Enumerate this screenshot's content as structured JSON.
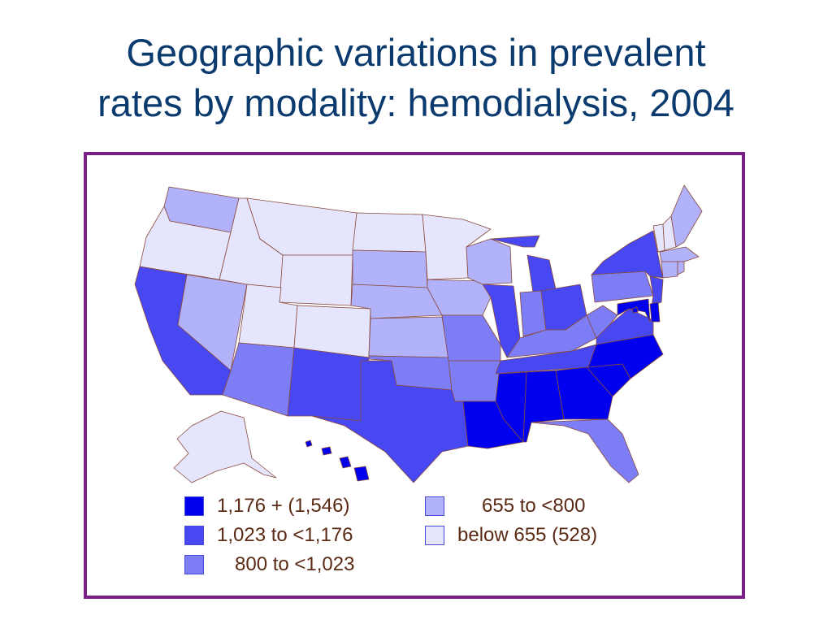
{
  "slide": {
    "title_lines": [
      "Geographic variations in prevalent",
      "rates by modality: hemodialysis, 2004"
    ]
  },
  "colors": {
    "c1": "#0000ee",
    "c2": "#4848f2",
    "c3": "#7d7df6",
    "c4": "#b2b2fb",
    "c5": "#e5e5fd",
    "border": "#8a4a3a",
    "frame": "#7a1f86",
    "title": "#0b3b6e",
    "legend_text": "#5a2a14"
  },
  "legend": {
    "items": [
      {
        "label": "1,176 + (1,546)",
        "color": "#0000ee"
      },
      {
        "label": "1,023 to <1,176",
        "color": "#4848f2"
      },
      {
        "label": "800 to <1,023",
        "color": "#7d7df6"
      },
      {
        "label": "655 to <800",
        "color": "#b2b2fb"
      },
      {
        "label": "below 655 (528)",
        "color": "#e5e5fd"
      }
    ]
  },
  "states": [
    {
      "name": "WA",
      "cls": "c4"
    },
    {
      "name": "OR",
      "cls": "c5"
    },
    {
      "name": "CA",
      "cls": "c2"
    },
    {
      "name": "NV",
      "cls": "c4"
    },
    {
      "name": "ID",
      "cls": "c5"
    },
    {
      "name": "MT",
      "cls": "c5"
    },
    {
      "name": "WY",
      "cls": "c5"
    },
    {
      "name": "UT",
      "cls": "c5"
    },
    {
      "name": "AZ",
      "cls": "c3"
    },
    {
      "name": "CO",
      "cls": "c5"
    },
    {
      "name": "NM",
      "cls": "c2"
    },
    {
      "name": "ND",
      "cls": "c5"
    },
    {
      "name": "SD",
      "cls": "c4"
    },
    {
      "name": "NE",
      "cls": "c4"
    },
    {
      "name": "KS",
      "cls": "c4"
    },
    {
      "name": "OK",
      "cls": "c3"
    },
    {
      "name": "TX",
      "cls": "c2"
    },
    {
      "name": "MN",
      "cls": "c5"
    },
    {
      "name": "IA",
      "cls": "c4"
    },
    {
      "name": "MO",
      "cls": "c3"
    },
    {
      "name": "AR",
      "cls": "c3"
    },
    {
      "name": "LA",
      "cls": "c1"
    },
    {
      "name": "WI",
      "cls": "c4"
    },
    {
      "name": "IL",
      "cls": "c2"
    },
    {
      "name": "MI",
      "cls": "c2"
    },
    {
      "name": "IN",
      "cls": "c3"
    },
    {
      "name": "OH",
      "cls": "c2"
    },
    {
      "name": "KY",
      "cls": "c3"
    },
    {
      "name": "TN",
      "cls": "c2"
    },
    {
      "name": "MS",
      "cls": "c1"
    },
    {
      "name": "AL",
      "cls": "c1"
    },
    {
      "name": "GA",
      "cls": "c1"
    },
    {
      "name": "FL",
      "cls": "c3"
    },
    {
      "name": "SC",
      "cls": "c1"
    },
    {
      "name": "NC",
      "cls": "c1"
    },
    {
      "name": "VA",
      "cls": "c2"
    },
    {
      "name": "WV",
      "cls": "c3"
    },
    {
      "name": "PA",
      "cls": "c3"
    },
    {
      "name": "NY",
      "cls": "c2"
    },
    {
      "name": "NJ",
      "cls": "c2"
    },
    {
      "name": "DE",
      "cls": "c1"
    },
    {
      "name": "MD",
      "cls": "c1"
    },
    {
      "name": "DC",
      "cls": "c1"
    },
    {
      "name": "VT",
      "cls": "c5"
    },
    {
      "name": "NH",
      "cls": "c5"
    },
    {
      "name": "ME",
      "cls": "c4"
    },
    {
      "name": "MA",
      "cls": "c4"
    },
    {
      "name": "CT",
      "cls": "c4"
    },
    {
      "name": "RI",
      "cls": "c4"
    },
    {
      "name": "AK",
      "cls": "c5"
    },
    {
      "name": "HI",
      "cls": "c1"
    }
  ]
}
